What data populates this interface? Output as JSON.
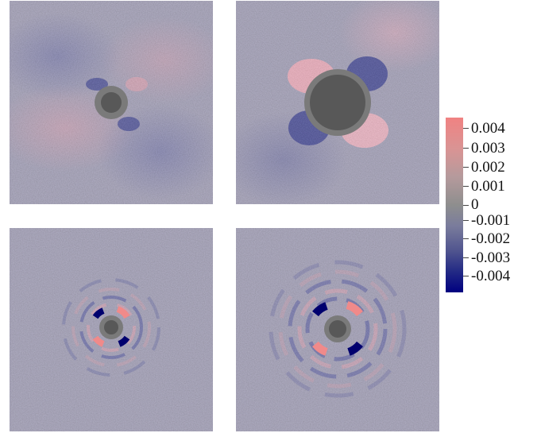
{
  "colorbar": {
    "ticks": [
      "0.004",
      "0.003",
      "0.002",
      "0.001",
      "0",
      "-0.001",
      "-0.002",
      "-0.003",
      "-0.004"
    ],
    "colors": {
      "max": "#f08282",
      "mid": "#8e8e8e",
      "min": "#000080"
    }
  },
  "panels": [
    {
      "name": "top-left",
      "disk": "small",
      "pattern": "lobes"
    },
    {
      "name": "top-right",
      "disk": "large",
      "pattern": "lobes"
    },
    {
      "name": "bottom-left",
      "disk": "small",
      "pattern": "rings"
    },
    {
      "name": "bottom-right",
      "disk": "small",
      "pattern": "rings"
    }
  ]
}
